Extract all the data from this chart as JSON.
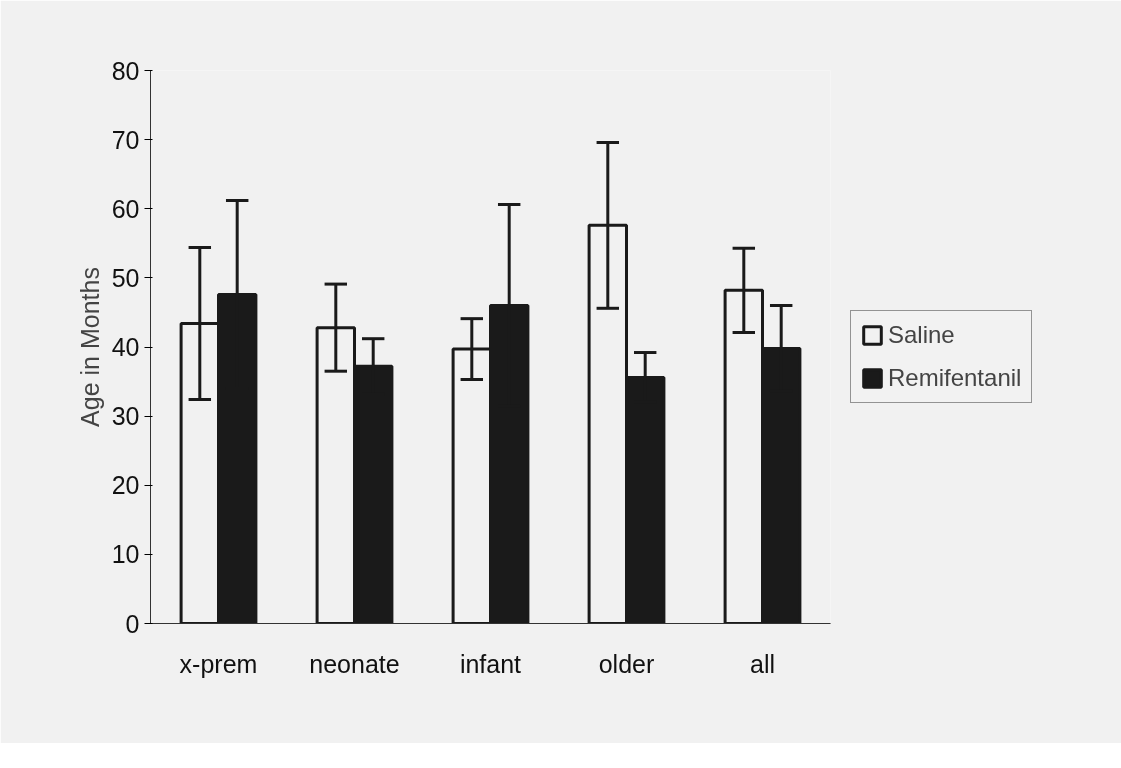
{
  "chart_data": {
    "type": "bar",
    "ylabel": "Age in Months",
    "categories": [
      "x-prem",
      "neonate",
      "infant",
      "older",
      "all"
    ],
    "series": [
      {
        "name": "Saline",
        "color": "#f1f1f1",
        "values": [
          43.4,
          42.8,
          39.7,
          57.6,
          48.2
        ],
        "errors": [
          11,
          6.3,
          4.4,
          12,
          6.1
        ]
      },
      {
        "name": "Remifentanil",
        "color": "#1a1a1a",
        "values": [
          47.6,
          37.2,
          46.0,
          35.6,
          39.8
        ],
        "errors": [
          13.6,
          4,
          14.6,
          3.6,
          6.2
        ]
      }
    ],
    "ylim": [
      0,
      80
    ],
    "yticks": [
      0,
      10,
      20,
      30,
      40,
      50,
      60,
      70,
      80
    ],
    "grid": false,
    "legend": "right"
  }
}
